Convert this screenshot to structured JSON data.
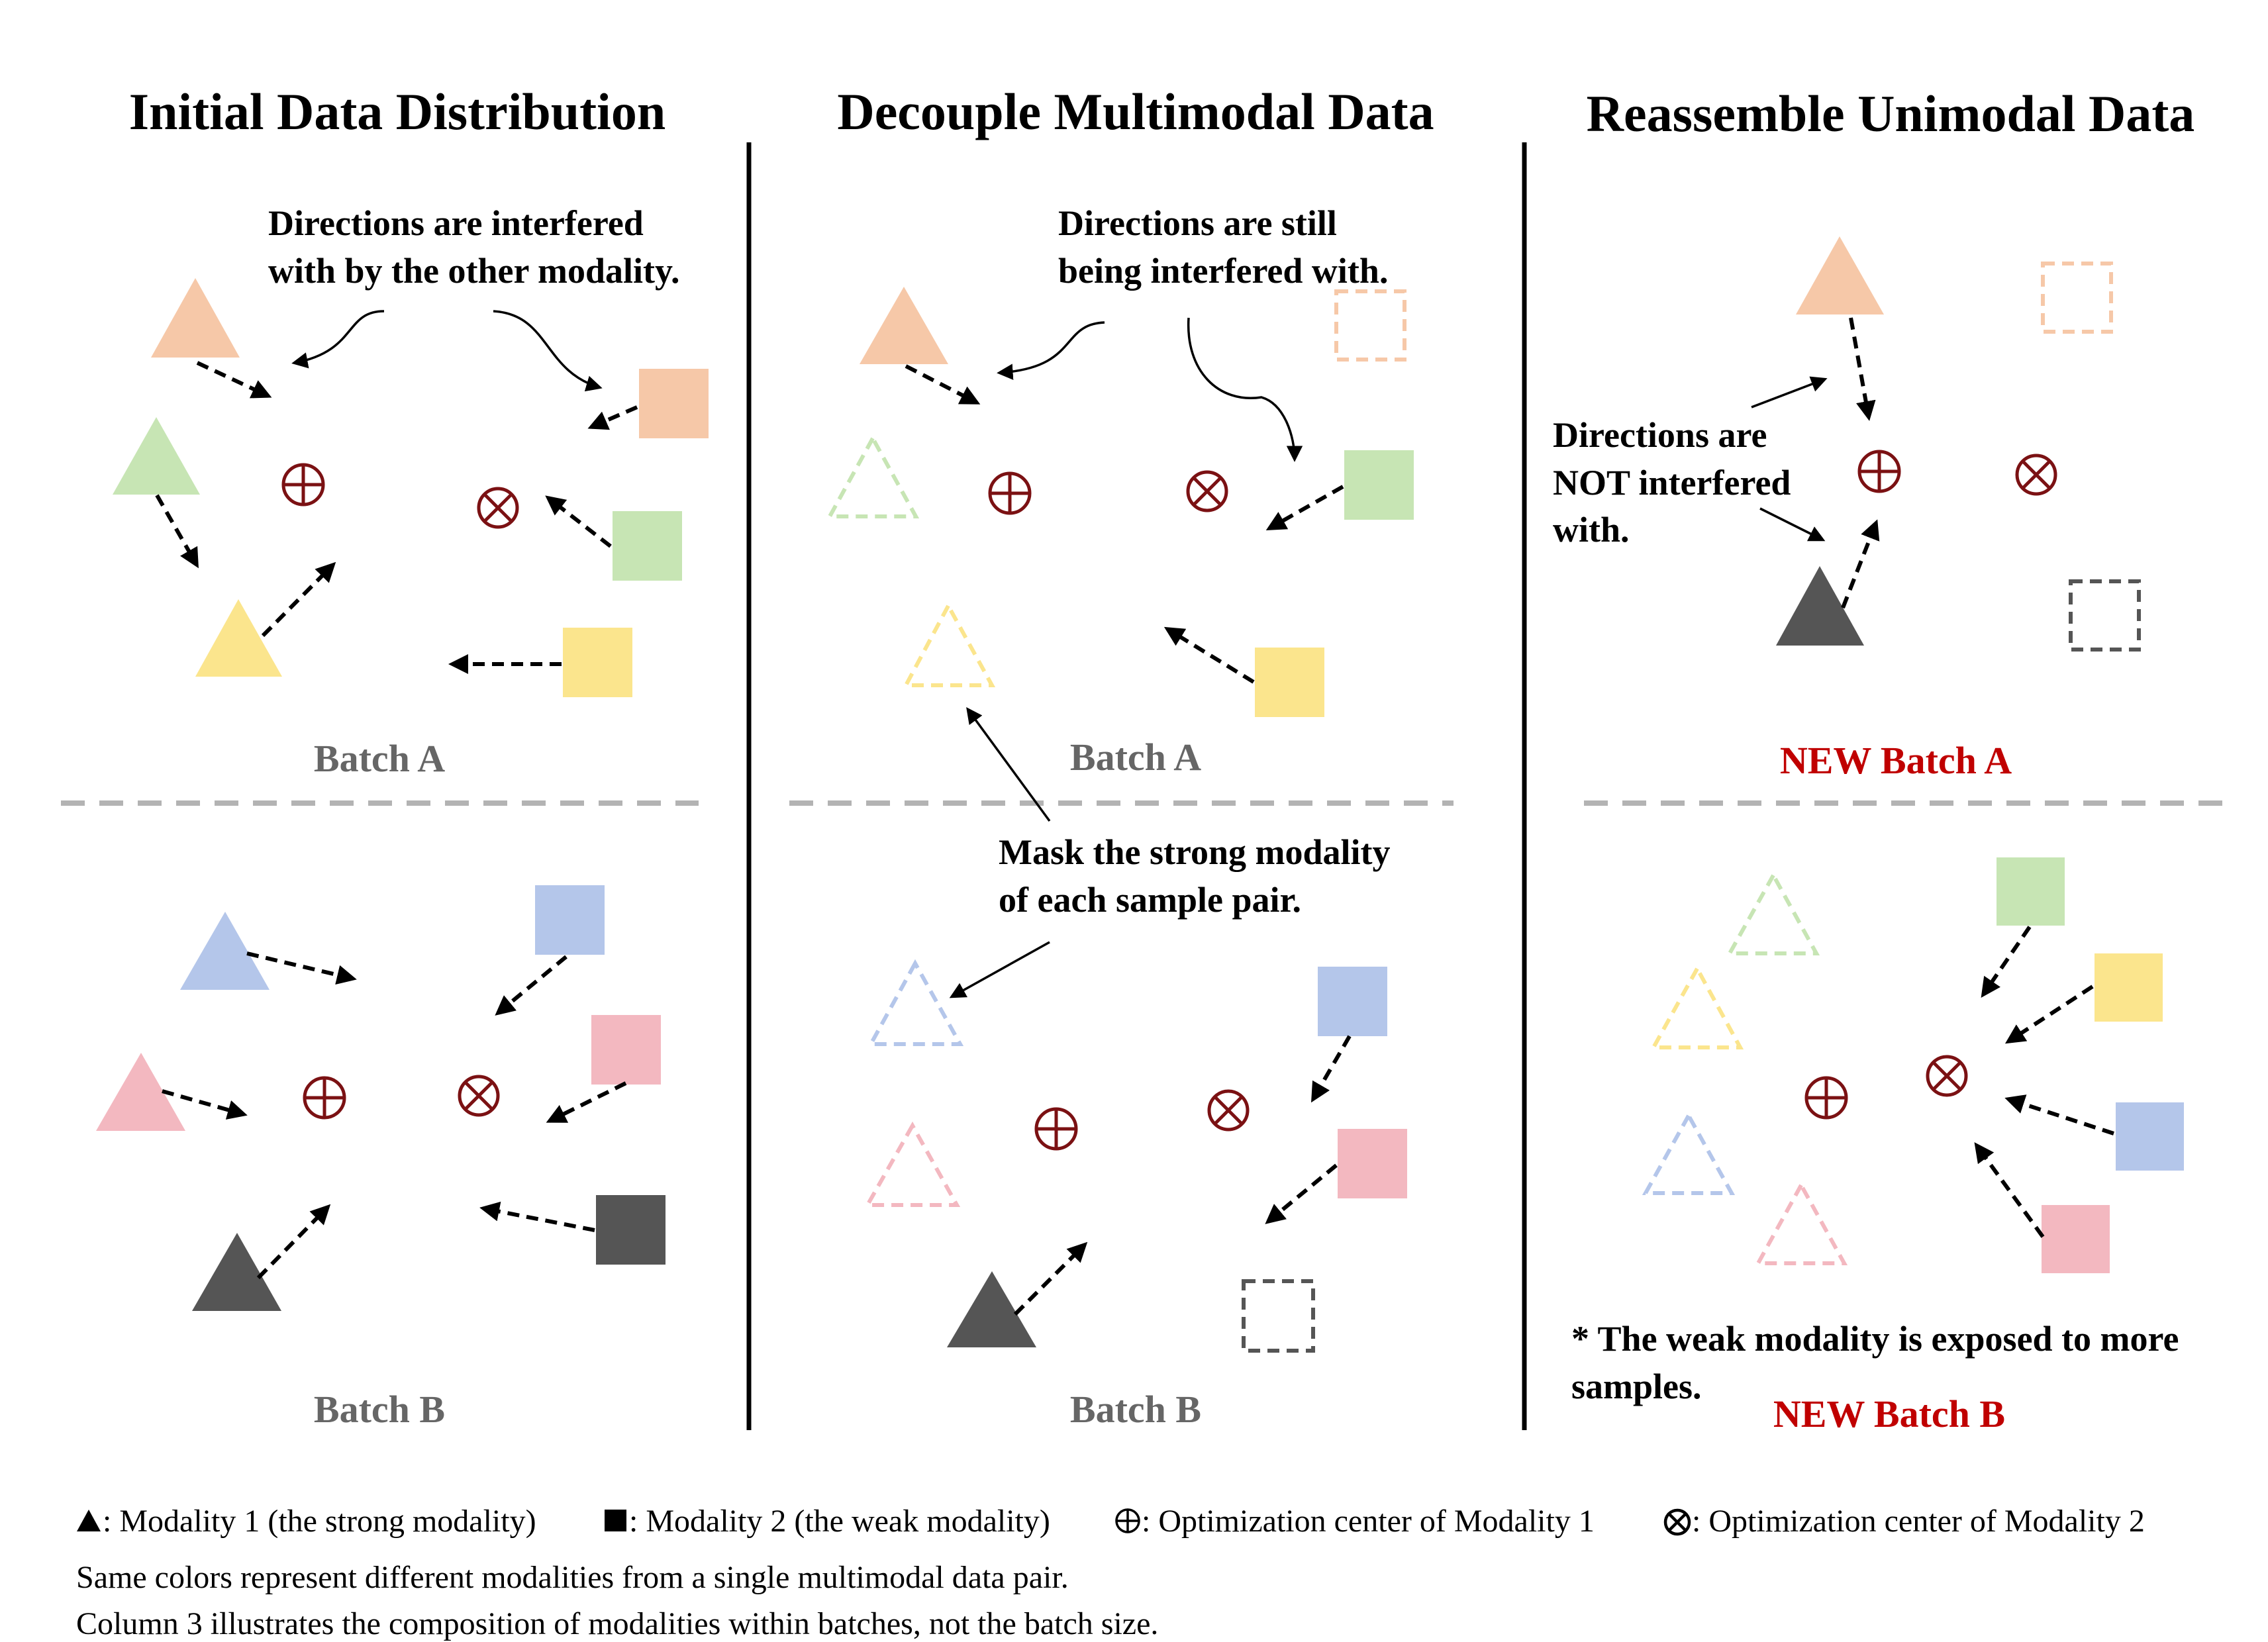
{
  "colors": {
    "orange": "#f6c8a8",
    "green": "#c7e5b4",
    "yellow": "#fbe58d",
    "blue": "#b4c6ea",
    "pink": "#f3b8c0",
    "dark": "#555555",
    "center": "#7b1113",
    "new_batch_red": "#c00000",
    "batch_gray": "#666666"
  },
  "columns": [
    {
      "title": "Initial Data Distribution"
    },
    {
      "title": "Decouple Multimodal Data"
    },
    {
      "title": "Reassemble Unimodal Data"
    }
  ],
  "annotations": {
    "col1_note": [
      "Directions are interfered",
      "with by the other modality."
    ],
    "col2_note": [
      "Directions are still",
      "being interfered with."
    ],
    "col2_mask": [
      "Mask the strong modality",
      "of each sample pair."
    ],
    "col3_note": [
      "Directions are",
      "NOT interfered",
      "with."
    ],
    "col3_weak": [
      "* The weak modality is exposed to more",
      "samples."
    ]
  },
  "batches": {
    "col1_a": "Batch A",
    "col1_b": "Batch B",
    "col2_a": "Batch A",
    "col2_b": "Batch B",
    "col3_a": "NEW Batch A",
    "col3_b": "NEW Batch B"
  },
  "legend": {
    "triangle_icon": "black-triangle",
    "triangle_label": ": Modality 1 (the strong modality)",
    "square_icon": "black-square",
    "square_label": ": Modality 2 (the weak modality)",
    "oplus_icon": "circled-plus",
    "oplus_label": ": Optimization center of Modality 1",
    "otimes_icon": "circled-times",
    "otimes_label": ": Optimization center of Modality 2",
    "note_line1": "Same colors represent different modalities from a single multimodal data pair.",
    "note_line2": "Column 3 illustrates the composition of modalities within batches, not the batch size."
  }
}
